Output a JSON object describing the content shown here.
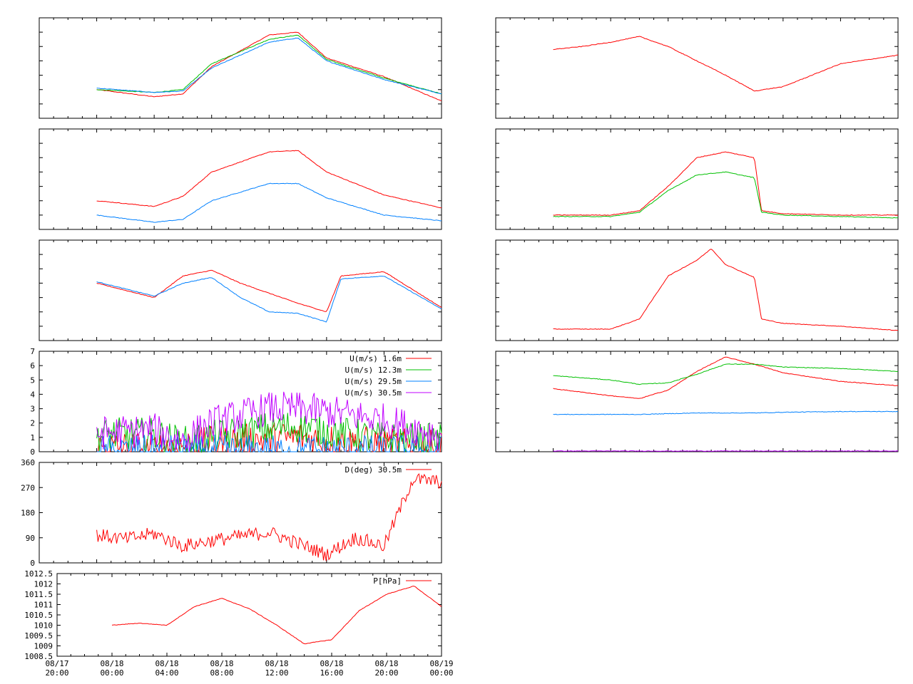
{
  "colors": {
    "red": "#ff0000",
    "green": "#00c000",
    "blue": "#0080ff",
    "magenta": "#c000ff",
    "frame": "#000000"
  },
  "time_axis": {
    "start": "08/17 20:00",
    "end": "08/19 00:00",
    "tick_labels": [
      {
        "date": "08/17",
        "time": "20:00"
      },
      {
        "date": "08/18",
        "time": "00:00"
      },
      {
        "date": "08/18",
        "time": "04:00"
      },
      {
        "date": "08/18",
        "time": "08:00"
      },
      {
        "date": "08/18",
        "time": "12:00"
      },
      {
        "date": "08/18",
        "time": "16:00"
      },
      {
        "date": "08/18",
        "time": "20:00"
      },
      {
        "date": "08/19",
        "time": "00:00"
      }
    ]
  },
  "chart_data": [
    {
      "id": "left-1",
      "type": "line",
      "grid": false,
      "ylim": [
        0,
        7
      ],
      "x": [
        "08/18 00:00",
        "08/18 04:00",
        "08/18 06:00",
        "08/18 08:00",
        "08/18 12:00",
        "08/18 14:00",
        "08/18 16:00",
        "08/18 20:00",
        "08/19 00:00"
      ],
      "series": [
        {
          "color": "#ff0000",
          "values": [
            2.0,
            1.5,
            1.7,
            3.6,
            5.8,
            6.0,
            4.2,
            2.9,
            1.2
          ]
        },
        {
          "color": "#00c000",
          "values": [
            2.0,
            1.8,
            2.0,
            3.8,
            5.5,
            5.8,
            4.1,
            2.8,
            1.7
          ]
        },
        {
          "color": "#0080ff",
          "values": [
            2.1,
            1.8,
            1.9,
            3.5,
            5.3,
            5.6,
            4.0,
            2.7,
            1.7
          ]
        }
      ]
    },
    {
      "id": "left-2",
      "type": "line",
      "grid": false,
      "ylim": [
        0,
        7
      ],
      "x": [
        "08/18 00:00",
        "08/18 04:00",
        "08/18 06:00",
        "08/18 08:00",
        "08/18 12:00",
        "08/18 14:00",
        "08/18 16:00",
        "08/18 20:00",
        "08/19 00:00"
      ],
      "series": [
        {
          "color": "#ff0000",
          "values": [
            2.0,
            1.6,
            2.3,
            4.0,
            5.4,
            5.5,
            4.0,
            2.4,
            1.5
          ]
        },
        {
          "color": "#0080ff",
          "values": [
            1.0,
            0.5,
            0.7,
            2.0,
            3.2,
            3.2,
            2.2,
            1.0,
            0.6
          ]
        }
      ]
    },
    {
      "id": "left-3",
      "type": "line",
      "grid": false,
      "ylim": [
        0,
        7
      ],
      "x": [
        "08/18 00:00",
        "08/18 04:00",
        "08/18 06:00",
        "08/18 08:00",
        "08/18 10:00",
        "08/18 12:00",
        "08/18 14:00",
        "08/18 16:00",
        "08/18 17:00",
        "08/18 20:00",
        "08/19 00:00"
      ],
      "series": [
        {
          "color": "#ff0000",
          "values": [
            4.0,
            3.0,
            4.5,
            4.9,
            4.0,
            3.3,
            2.6,
            2.0,
            4.5,
            4.8,
            2.3
          ]
        },
        {
          "color": "#0080ff",
          "values": [
            4.1,
            3.1,
            4.0,
            4.4,
            3.0,
            2.0,
            1.9,
            1.3,
            4.3,
            4.5,
            2.2
          ]
        }
      ]
    },
    {
      "id": "left-4",
      "type": "line",
      "grid": false,
      "ylim": [
        0,
        7
      ],
      "yticks": [
        "0",
        "1",
        "2",
        "3",
        "4",
        "5",
        "6",
        "7"
      ],
      "x": [
        "08/18 00:00",
        "08/18 04:00",
        "08/18 06:00",
        "08/18 08:00",
        "08/18 12:00",
        "08/18 14:00",
        "08/18 16:00",
        "08/18 20:00",
        "08/19 00:00"
      ],
      "series": [
        {
          "name": "U(m/s)  1.6m",
          "color": "#ff0000",
          "values": [
            0.3,
            0.2,
            0.4,
            0.6,
            0.9,
            1.0,
            0.8,
            0.5,
            0.3
          ]
        },
        {
          "name": "U(m/s) 12.3m",
          "color": "#00c000",
          "values": [
            1.2,
            1.2,
            0.6,
            1.0,
            1.6,
            1.8,
            1.4,
            0.9,
            0.8
          ]
        },
        {
          "name": "U(m/s) 29.5m",
          "color": "#0080ff",
          "values": [
            0.0,
            0.0,
            0.0,
            0.0,
            0.0,
            0.0,
            0.0,
            0.0,
            0.0
          ]
        },
        {
          "name": "U(m/s) 30.5m",
          "color": "#c000ff",
          "values": [
            1.3,
            1.5,
            0.8,
            2.0,
            3.0,
            3.0,
            2.8,
            2.2,
            1.2
          ]
        }
      ],
      "legend": "top-right"
    },
    {
      "id": "left-5",
      "type": "line",
      "grid": false,
      "ylim": [
        0,
        360
      ],
      "yticks": [
        "0",
        "90",
        "180",
        "270",
        "360"
      ],
      "x": [
        "08/18 00:00",
        "08/18 02:00",
        "08/18 04:00",
        "08/18 06:00",
        "08/18 08:00",
        "08/18 12:00",
        "08/18 16:00",
        "08/18 18:00",
        "08/18 20:00",
        "08/18 22:00",
        "08/19 00:00"
      ],
      "series": [
        {
          "name": "D(deg)  30.5m",
          "color": "#ff0000",
          "values": [
            100,
            85,
            105,
            60,
            80,
            110,
            30,
            90,
            60,
            300,
            290
          ]
        }
      ],
      "legend": "top-right"
    },
    {
      "id": "left-6",
      "type": "line",
      "grid": false,
      "ylim": [
        1008.5,
        1012.5
      ],
      "yticks": [
        "1008.5",
        "1009",
        "1009.5",
        "1010",
        "1010.5",
        "1011",
        "1011.5",
        "1012",
        "1012.5"
      ],
      "x": [
        "08/18 00:00",
        "08/18 02:00",
        "08/18 04:00",
        "08/18 06:00",
        "08/18 08:00",
        "08/18 10:00",
        "08/18 12:00",
        "08/18 14:00",
        "08/18 16:00",
        "08/18 18:00",
        "08/18 20:00",
        "08/18 22:00",
        "08/19 00:00"
      ],
      "series": [
        {
          "name": "P[hPa]",
          "color": "#ff0000",
          "values": [
            1010.0,
            1010.1,
            1010.0,
            1010.9,
            1011.3,
            1010.8,
            1010.0,
            1009.1,
            1009.3,
            1010.7,
            1011.5,
            1011.9,
            1010.9
          ]
        }
      ],
      "legend": "top-right"
    },
    {
      "id": "right-1",
      "type": "line",
      "grid": false,
      "ylim": [
        0,
        7
      ],
      "x": [
        "08/18 00:00",
        "08/18 02:00",
        "08/18 04:00",
        "08/18 06:00",
        "08/18 08:00",
        "08/18 10:00",
        "08/18 12:00",
        "08/18 14:00",
        "08/18 16:00",
        "08/18 20:00",
        "08/19 00:00"
      ],
      "series": [
        {
          "color": "#ff0000",
          "values": [
            4.8,
            5.0,
            5.3,
            5.7,
            5.0,
            4.0,
            3.0,
            1.9,
            2.2,
            3.8,
            4.4
          ]
        }
      ]
    },
    {
      "id": "right-2",
      "type": "line",
      "grid": false,
      "ylim": [
        0,
        7
      ],
      "x": [
        "08/18 00:00",
        "08/18 04:00",
        "08/18 06:00",
        "08/18 08:00",
        "08/18 10:00",
        "08/18 12:00",
        "08/18 14:00",
        "08/18 14:30",
        "08/18 16:00",
        "08/18 20:00",
        "08/19 00:00"
      ],
      "series": [
        {
          "color": "#ff0000",
          "values": [
            1.0,
            1.0,
            1.3,
            3.0,
            5.0,
            5.4,
            5.0,
            1.3,
            1.1,
            1.0,
            1.0
          ]
        },
        {
          "color": "#00c000",
          "values": [
            0.9,
            0.9,
            1.2,
            2.7,
            3.8,
            4.0,
            3.6,
            1.2,
            1.0,
            0.9,
            0.8
          ]
        }
      ]
    },
    {
      "id": "right-3",
      "type": "line",
      "grid": false,
      "ylim": [
        0,
        7
      ],
      "x": [
        "08/18 00:00",
        "08/18 04:00",
        "08/18 06:00",
        "08/18 08:00",
        "08/18 10:00",
        "08/18 11:00",
        "08/18 12:00",
        "08/18 14:00",
        "08/18 14:30",
        "08/18 16:00",
        "08/18 20:00",
        "08/19 00:00"
      ],
      "series": [
        {
          "color": "#ff0000",
          "values": [
            0.8,
            0.8,
            1.5,
            4.5,
            5.6,
            6.4,
            5.3,
            4.4,
            1.5,
            1.2,
            1.0,
            0.7
          ]
        }
      ]
    },
    {
      "id": "right-4",
      "type": "line",
      "grid": false,
      "ylim": [
        0,
        7
      ],
      "x": [
        "08/18 00:00",
        "08/18 04:00",
        "08/18 06:00",
        "08/18 08:00",
        "08/18 10:00",
        "08/18 12:00",
        "08/18 14:00",
        "08/18 16:00",
        "08/18 20:00",
        "08/19 00:00"
      ],
      "series": [
        {
          "color": "#ff0000",
          "values": [
            4.4,
            3.9,
            3.7,
            4.3,
            5.6,
            6.6,
            6.1,
            5.5,
            4.9,
            4.6
          ]
        },
        {
          "color": "#00c000",
          "values": [
            5.3,
            5.0,
            4.7,
            4.8,
            5.4,
            6.1,
            6.1,
            5.9,
            5.8,
            5.6
          ]
        },
        {
          "color": "#0080ff",
          "values": [
            2.6,
            2.6,
            2.6,
            2.65,
            2.7,
            2.7,
            2.7,
            2.75,
            2.8,
            2.8
          ]
        },
        {
          "color": "#c000ff",
          "values": [
            0.05,
            0.05,
            0.05,
            0.05,
            0.05,
            0.05,
            0.05,
            0.05,
            0.05,
            0.05
          ]
        }
      ]
    }
  ]
}
